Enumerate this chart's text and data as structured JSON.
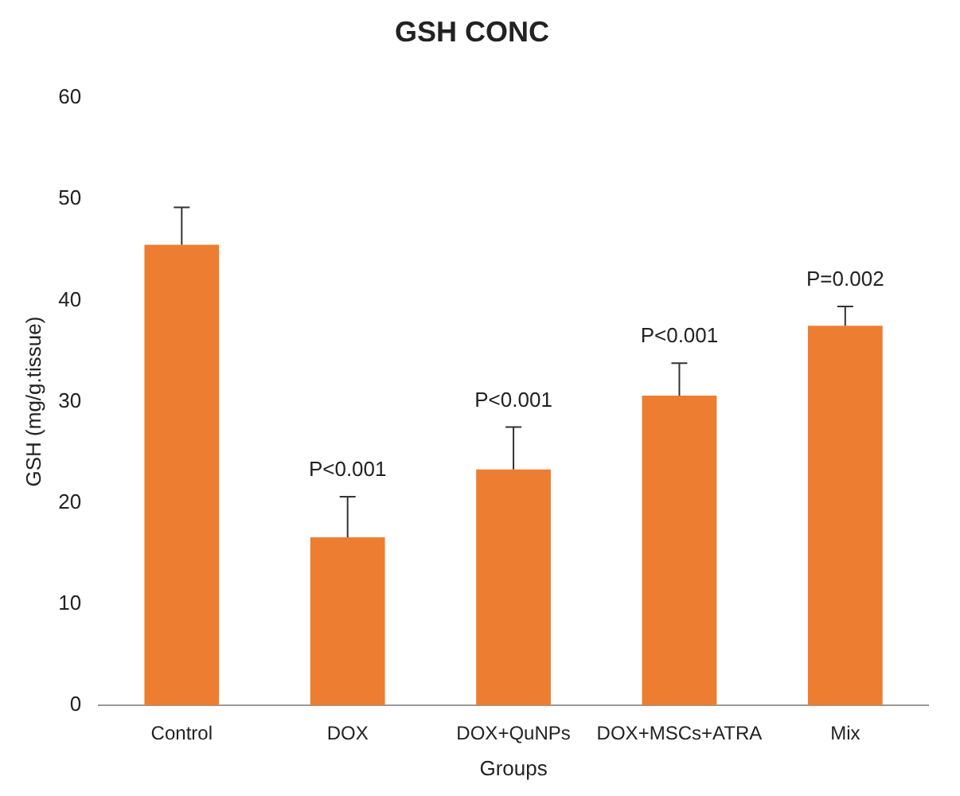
{
  "chart_data": {
    "type": "bar",
    "title": "GSH CONC",
    "xlabel": "Groups",
    "ylabel": "GSH (mg/g.tissue)",
    "categories": [
      "Control",
      "DOX",
      "DOX+QuNPs",
      "DOX+MSCs+ATRA",
      "Mix"
    ],
    "values": [
      45.5,
      16.6,
      23.3,
      30.6,
      37.5
    ],
    "errors": [
      [
        45.5,
        49.2
      ],
      [
        16.6,
        20.6
      ],
      [
        23.3,
        27.5
      ],
      [
        30.6,
        33.8
      ],
      [
        37.5,
        39.4
      ]
    ],
    "color": "#ed7d31",
    "ylim": [
      0,
      60
    ],
    "yticks": [
      0,
      10,
      20,
      30,
      40,
      50,
      60
    ],
    "grid": false,
    "legend": false,
    "annotations": [
      {
        "text": "P<0.001",
        "x": "DOX",
        "y": 20.6
      },
      {
        "text": "P<0.001",
        "x": "DOX+QuNPs",
        "y": 27.5
      },
      {
        "text": "P<0.001",
        "x": "DOX+MSCs+ATRA",
        "y": 33.8
      },
      {
        "text": "P=0.002",
        "x": "Mix",
        "y": 39.4
      }
    ]
  }
}
